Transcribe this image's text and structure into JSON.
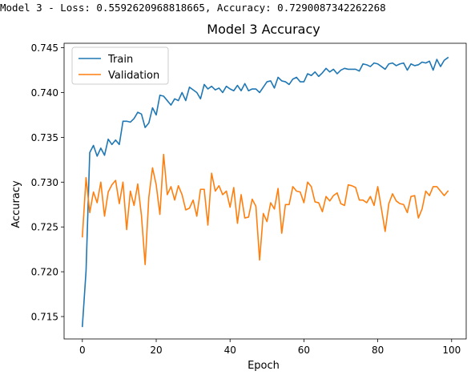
{
  "output_line": "Model 3 - Loss: 0.5592620968818665, Accuracy: 0.7290087342262268",
  "chart_data": {
    "type": "line",
    "title": "Model 3 Accuracy",
    "xlabel": "Epoch",
    "ylabel": "Accuracy",
    "xlim": [
      -4.95,
      103.95
    ],
    "ylim": [
      0.7125,
      0.7455
    ],
    "xticks": [
      0,
      20,
      40,
      60,
      80,
      100
    ],
    "yticks": [
      0.715,
      0.72,
      0.725,
      0.73,
      0.735,
      0.74,
      0.745
    ],
    "ytick_labels": [
      "0.715",
      "0.720",
      "0.725",
      "0.730",
      "0.735",
      "0.740",
      "0.745"
    ],
    "legend_location": "upper left",
    "x": [
      0,
      1,
      2,
      3,
      4,
      5,
      6,
      7,
      8,
      9,
      10,
      11,
      12,
      13,
      14,
      15,
      16,
      17,
      18,
      19,
      20,
      21,
      22,
      23,
      24,
      25,
      26,
      27,
      28,
      29,
      30,
      31,
      32,
      33,
      34,
      35,
      36,
      37,
      38,
      39,
      40,
      41,
      42,
      43,
      44,
      45,
      46,
      47,
      48,
      49,
      50,
      51,
      52,
      53,
      54,
      55,
      56,
      57,
      58,
      59,
      60,
      61,
      62,
      63,
      64,
      65,
      66,
      67,
      68,
      69,
      70,
      71,
      72,
      73,
      74,
      75,
      76,
      77,
      78,
      79,
      80,
      81,
      82,
      83,
      84,
      85,
      86,
      87,
      88,
      89,
      90,
      91,
      92,
      93,
      94,
      95,
      96,
      97,
      98,
      99
    ],
    "series": [
      {
        "name": "Train",
        "color": "#1f77b4",
        "values": [
          0.7139,
          0.7201,
          0.7333,
          0.7341,
          0.7329,
          0.7338,
          0.733,
          0.7348,
          0.7342,
          0.7347,
          0.7342,
          0.7368,
          0.7368,
          0.7367,
          0.7371,
          0.7378,
          0.7376,
          0.7361,
          0.7366,
          0.7383,
          0.7375,
          0.7397,
          0.7396,
          0.7391,
          0.7386,
          0.7393,
          0.7391,
          0.74,
          0.7391,
          0.7406,
          0.7403,
          0.74,
          0.7393,
          0.7409,
          0.7404,
          0.7407,
          0.7403,
          0.7405,
          0.74,
          0.7407,
          0.7404,
          0.7402,
          0.7408,
          0.7402,
          0.741,
          0.7402,
          0.7404,
          0.7404,
          0.74,
          0.7406,
          0.7412,
          0.7413,
          0.7405,
          0.7417,
          0.7413,
          0.7412,
          0.7409,
          0.7415,
          0.7417,
          0.7412,
          0.7412,
          0.7421,
          0.7419,
          0.7423,
          0.7418,
          0.7422,
          0.7427,
          0.7423,
          0.7426,
          0.7421,
          0.7425,
          0.7427,
          0.7426,
          0.7426,
          0.7426,
          0.7424,
          0.7432,
          0.7431,
          0.7429,
          0.7433,
          0.7432,
          0.7429,
          0.7426,
          0.7432,
          0.7433,
          0.743,
          0.7432,
          0.7433,
          0.7425,
          0.7432,
          0.743,
          0.7431,
          0.7434,
          0.7433,
          0.7435,
          0.7425,
          0.7437,
          0.7429,
          0.7436,
          0.7439
        ]
      },
      {
        "name": "Validation",
        "color": "#ff7f0e",
        "values": [
          0.7239,
          0.7305,
          0.7266,
          0.7289,
          0.7277,
          0.73,
          0.7262,
          0.7289,
          0.7297,
          0.7302,
          0.7276,
          0.73,
          0.7247,
          0.729,
          0.7274,
          0.7298,
          0.7263,
          0.7208,
          0.7283,
          0.7316,
          0.7297,
          0.7264,
          0.7331,
          0.7286,
          0.7295,
          0.728,
          0.7296,
          0.7286,
          0.7269,
          0.7271,
          0.728,
          0.7262,
          0.7292,
          0.7292,
          0.7252,
          0.731,
          0.729,
          0.7296,
          0.7286,
          0.729,
          0.7272,
          0.7294,
          0.7254,
          0.7286,
          0.726,
          0.7261,
          0.7281,
          0.7273,
          0.7213,
          0.7265,
          0.7256,
          0.7277,
          0.727,
          0.7293,
          0.7243,
          0.7275,
          0.7275,
          0.7295,
          0.729,
          0.7289,
          0.7277,
          0.73,
          0.7295,
          0.7278,
          0.7277,
          0.7267,
          0.7284,
          0.7279,
          0.7285,
          0.7288,
          0.7276,
          0.7274,
          0.7297,
          0.7296,
          0.7294,
          0.728,
          0.728,
          0.7277,
          0.7284,
          0.7274,
          0.7295,
          0.727,
          0.7245,
          0.7276,
          0.7287,
          0.7279,
          0.7276,
          0.7275,
          0.7266,
          0.7284,
          0.7285,
          0.726,
          0.727,
          0.729,
          0.7285,
          0.7295,
          0.7295,
          0.729,
          0.7285,
          0.729
        ]
      }
    ]
  }
}
